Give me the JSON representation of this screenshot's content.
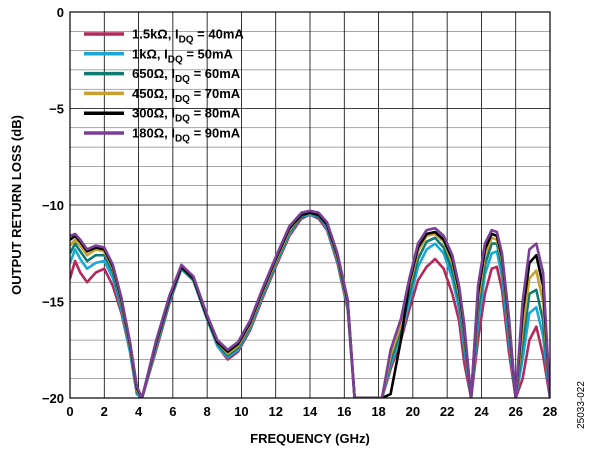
{
  "figure_id": "25033-022",
  "chart_data": {
    "type": "line",
    "xlabel": "FREQUENCY (GHz)",
    "ylabel": "OUTPUT RETURN LOSS (dB)",
    "xlim": [
      0,
      28
    ],
    "ylim": [
      -20,
      0
    ],
    "xticks": [
      0,
      2,
      4,
      6,
      8,
      10,
      12,
      14,
      16,
      18,
      20,
      22,
      24,
      26,
      28
    ],
    "yticks": [
      0,
      -5,
      -10,
      -15,
      -20
    ],
    "grid": true,
    "legend_position": "top-left",
    "series": [
      {
        "name": "1.5kΩ, IDQ = 40mA",
        "legend_main": "1.5kΩ, I",
        "legend_sub": "DQ",
        "legend_tail": " = 40mA",
        "color": "#b5285a",
        "x": [
          0,
          0.3,
          0.6,
          1.0,
          1.5,
          2.0,
          2.5,
          3.0,
          3.5,
          3.9,
          4.2,
          5.0,
          5.8,
          6.5,
          7.2,
          8.0,
          8.6,
          9.2,
          9.8,
          10.5,
          11.2,
          12.0,
          12.8,
          13.5,
          14.0,
          14.5,
          15.0,
          15.6,
          16.2,
          16.6,
          18.2,
          18.7,
          19.3,
          19.8,
          20.3,
          20.8,
          21.3,
          21.8,
          22.3,
          22.7,
          23.0,
          23.4,
          23.8,
          24.2,
          24.6,
          24.9,
          25.2,
          25.6,
          26.0,
          26.4,
          26.8,
          27.2,
          27.6,
          28.0
        ],
        "y": [
          -13.8,
          -12.9,
          -13.5,
          -14.0,
          -13.5,
          -13.3,
          -14.2,
          -15.6,
          -17.6,
          -19.8,
          -20.0,
          -17.6,
          -15.1,
          -13.3,
          -13.9,
          -15.9,
          -17.3,
          -18.0,
          -17.6,
          -16.5,
          -14.9,
          -13.2,
          -11.6,
          -10.7,
          -10.5,
          -10.7,
          -11.3,
          -13.0,
          -15.4,
          -20.0,
          -20.0,
          -18.5,
          -17.0,
          -15.4,
          -13.9,
          -13.2,
          -12.8,
          -13.3,
          -14.6,
          -16.0,
          -18.2,
          -20.0,
          -17.0,
          -14.6,
          -13.3,
          -13.2,
          -14.4,
          -17.6,
          -20.0,
          -19.0,
          -17.0,
          -16.3,
          -17.8,
          -20.0
        ]
      },
      {
        "name": "1kΩ, IDQ = 50mA",
        "legend_main": "1kΩ, I",
        "legend_sub": "DQ",
        "legend_tail": " = 50mA",
        "color": "#1ba8d8",
        "x": [
          0,
          0.3,
          0.6,
          1.0,
          1.5,
          2.0,
          2.5,
          3.0,
          3.5,
          3.9,
          4.2,
          5.0,
          5.8,
          6.5,
          7.2,
          8.0,
          8.6,
          9.2,
          9.8,
          10.5,
          11.2,
          12.0,
          12.8,
          13.5,
          14.0,
          14.5,
          15.0,
          15.6,
          16.2,
          16.6,
          18.2,
          18.7,
          19.3,
          19.8,
          20.3,
          20.8,
          21.3,
          21.8,
          22.3,
          22.7,
          23.0,
          23.4,
          23.8,
          24.2,
          24.6,
          24.9,
          25.2,
          25.6,
          26.0,
          26.4,
          26.8,
          27.2,
          27.6,
          28.0
        ],
        "y": [
          -13.0,
          -12.3,
          -12.8,
          -13.3,
          -13.0,
          -12.9,
          -13.8,
          -15.4,
          -17.6,
          -19.8,
          -20.0,
          -17.5,
          -15.0,
          -13.3,
          -13.9,
          -15.9,
          -17.3,
          -17.9,
          -17.5,
          -16.4,
          -14.8,
          -13.1,
          -11.5,
          -10.6,
          -10.5,
          -10.6,
          -11.2,
          -12.9,
          -15.3,
          -20.0,
          -20.0,
          -18.3,
          -16.8,
          -15.0,
          -13.2,
          -12.3,
          -12.0,
          -12.5,
          -13.8,
          -15.4,
          -17.4,
          -20.0,
          -16.2,
          -13.6,
          -12.5,
          -12.4,
          -13.7,
          -17.0,
          -20.0,
          -18.0,
          -15.6,
          -15.3,
          -16.8,
          -20.0
        ]
      },
      {
        "name": "650Ω, IDQ = 60mA",
        "legend_main": "650Ω, I",
        "legend_sub": "DQ",
        "legend_tail": " = 60mA",
        "color": "#0f7a72",
        "x": [
          0,
          0.3,
          0.6,
          1.0,
          1.5,
          2.0,
          2.5,
          3.0,
          3.5,
          3.9,
          4.2,
          5.0,
          5.8,
          6.5,
          7.2,
          8.0,
          8.6,
          9.2,
          9.8,
          10.5,
          11.2,
          12.0,
          12.8,
          13.5,
          14.0,
          14.5,
          15.0,
          15.6,
          16.2,
          16.6,
          18.2,
          18.7,
          19.3,
          19.8,
          20.3,
          20.8,
          21.3,
          21.8,
          22.3,
          22.7,
          23.0,
          23.4,
          23.8,
          24.2,
          24.6,
          24.9,
          25.2,
          25.6,
          26.0,
          26.4,
          26.8,
          27.2,
          27.6,
          28.0
        ],
        "y": [
          -12.5,
          -12.0,
          -12.4,
          -12.9,
          -12.6,
          -12.6,
          -13.5,
          -15.2,
          -17.4,
          -19.7,
          -20.0,
          -17.4,
          -14.9,
          -13.3,
          -13.9,
          -15.9,
          -17.2,
          -17.8,
          -17.4,
          -16.3,
          -14.7,
          -13.0,
          -11.4,
          -10.6,
          -10.4,
          -10.6,
          -11.1,
          -12.8,
          -15.2,
          -20.0,
          -20.0,
          -18.1,
          -16.5,
          -14.6,
          -12.8,
          -11.9,
          -11.7,
          -12.2,
          -13.4,
          -15.0,
          -17.0,
          -20.0,
          -15.6,
          -13.1,
          -12.0,
          -12.0,
          -13.2,
          -16.6,
          -20.0,
          -17.2,
          -14.6,
          -14.4,
          -16.0,
          -20.0
        ]
      },
      {
        "name": "450Ω, IDQ = 70mA",
        "legend_main": "450Ω, I",
        "legend_sub": "DQ",
        "legend_tail": " = 70mA",
        "color": "#c8a030",
        "x": [
          0,
          0.3,
          0.6,
          1.0,
          1.5,
          2.0,
          2.5,
          3.0,
          3.5,
          3.9,
          4.2,
          5.0,
          5.8,
          6.5,
          7.2,
          8.0,
          8.6,
          9.2,
          9.8,
          10.5,
          11.2,
          12.0,
          12.8,
          13.5,
          14.0,
          14.5,
          15.0,
          15.6,
          16.2,
          16.6,
          18.2,
          18.7,
          19.3,
          19.8,
          20.3,
          20.8,
          21.3,
          21.8,
          22.3,
          22.7,
          23.0,
          23.4,
          23.8,
          24.2,
          24.6,
          24.9,
          25.2,
          25.6,
          26.0,
          26.4,
          26.8,
          27.2,
          27.6,
          28.0
        ],
        "y": [
          -12.1,
          -11.8,
          -12.1,
          -12.6,
          -12.3,
          -12.4,
          -13.3,
          -15.0,
          -17.3,
          -19.6,
          -20.0,
          -17.3,
          -14.8,
          -13.2,
          -13.8,
          -15.8,
          -17.1,
          -17.7,
          -17.3,
          -16.2,
          -14.6,
          -12.9,
          -11.3,
          -10.5,
          -10.4,
          -10.5,
          -11.0,
          -12.7,
          -15.1,
          -20.0,
          -20.0,
          -17.8,
          -16.2,
          -14.2,
          -12.4,
          -11.6,
          -11.5,
          -11.9,
          -13.0,
          -14.6,
          -16.6,
          -20.0,
          -15.0,
          -12.6,
          -11.7,
          -11.8,
          -12.9,
          -16.2,
          -20.0,
          -16.4,
          -13.8,
          -13.4,
          -15.0,
          -20.0
        ]
      },
      {
        "name": "300Ω, IDQ = 80mA",
        "legend_main": "300Ω, I",
        "legend_sub": "DQ",
        "legend_tail": " = 80mA",
        "color": "#000000",
        "x": [
          0,
          0.3,
          0.6,
          1.0,
          1.5,
          2.0,
          2.5,
          3.0,
          3.5,
          3.9,
          4.2,
          5.0,
          5.8,
          6.5,
          7.2,
          8.0,
          8.6,
          9.2,
          9.8,
          10.5,
          11.2,
          12.0,
          12.8,
          13.5,
          14.0,
          14.5,
          15.0,
          15.6,
          16.2,
          16.6,
          18.2,
          18.7,
          19.3,
          19.8,
          20.3,
          20.8,
          21.3,
          21.8,
          22.3,
          22.7,
          23.0,
          23.4,
          23.8,
          24.2,
          24.6,
          24.9,
          25.2,
          25.6,
          26.0,
          26.4,
          26.8,
          27.2,
          27.6,
          28.0
        ],
        "y": [
          -11.8,
          -11.6,
          -11.9,
          -12.4,
          -12.2,
          -12.3,
          -13.2,
          -14.9,
          -17.2,
          -19.5,
          -20.0,
          -17.2,
          -14.8,
          -13.2,
          -13.8,
          -15.8,
          -17.1,
          -17.6,
          -17.2,
          -16.1,
          -14.5,
          -12.8,
          -11.2,
          -10.5,
          -10.4,
          -10.5,
          -11.0,
          -12.6,
          -15.0,
          -20.0,
          -20.0,
          -19.8,
          -17.0,
          -14.0,
          -12.2,
          -11.5,
          -11.4,
          -11.8,
          -12.8,
          -14.4,
          -16.4,
          -20.0,
          -14.6,
          -12.3,
          -11.5,
          -11.6,
          -12.7,
          -16.0,
          -20.0,
          -15.6,
          -13.0,
          -12.6,
          -14.2,
          -20.0
        ]
      },
      {
        "name": "180Ω, IDQ = 90mA",
        "legend_main": "180Ω, I",
        "legend_sub": "DQ",
        "legend_tail": " = 90mA",
        "color": "#7b3f98",
        "x": [
          0,
          0.3,
          0.6,
          1.0,
          1.5,
          2.0,
          2.5,
          3.0,
          3.5,
          3.9,
          4.2,
          5.0,
          5.8,
          6.5,
          7.2,
          8.0,
          8.6,
          9.2,
          9.8,
          10.5,
          11.2,
          12.0,
          12.8,
          13.5,
          14.0,
          14.5,
          15.0,
          15.6,
          16.2,
          16.6,
          18.2,
          18.7,
          19.3,
          19.8,
          20.3,
          20.8,
          21.3,
          21.8,
          22.3,
          22.7,
          23.0,
          23.4,
          23.8,
          24.2,
          24.6,
          24.9,
          25.2,
          25.6,
          26.0,
          26.4,
          26.8,
          27.2,
          27.6,
          28.0
        ],
        "y": [
          -11.6,
          -11.5,
          -11.8,
          -12.3,
          -12.1,
          -12.2,
          -13.1,
          -14.8,
          -17.1,
          -19.4,
          -20.0,
          -17.1,
          -14.7,
          -13.1,
          -13.7,
          -15.7,
          -17.0,
          -17.5,
          -17.1,
          -16.0,
          -14.4,
          -12.7,
          -11.1,
          -10.4,
          -10.3,
          -10.4,
          -10.9,
          -12.5,
          -14.9,
          -20.0,
          -20.0,
          -17.5,
          -15.9,
          -13.8,
          -12.0,
          -11.3,
          -11.2,
          -11.6,
          -12.6,
          -14.2,
          -16.2,
          -20.0,
          -14.2,
          -12.0,
          -11.3,
          -11.4,
          -12.5,
          -15.8,
          -20.0,
          -15.0,
          -12.3,
          -12.0,
          -13.5,
          -20.0
        ]
      }
    ]
  }
}
